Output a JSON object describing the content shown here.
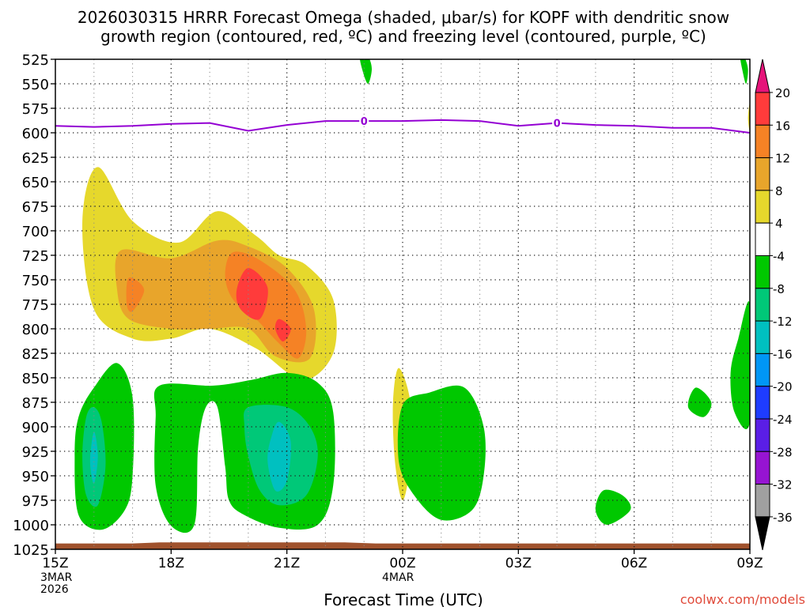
{
  "chart_data": {
    "type": "contour",
    "title_line1": "2026030315 HRRR Forecast Omega (shaded, μbar/s) for KOPF with dendritic snow",
    "title_line2": "growth region (contoured, red, ºC) and freezing level (contoured, purple, ºC)",
    "xlabel": "Forecast Time (UTC)",
    "watermark": "coolwx.com/models",
    "x_ticks": [
      {
        "h": 0,
        "label": "15Z",
        "sub": [
          "3MAR",
          "2026"
        ]
      },
      {
        "h": 3,
        "label": "18Z",
        "sub": []
      },
      {
        "h": 6,
        "label": "21Z",
        "sub": []
      },
      {
        "h": 9,
        "label": "00Z",
        "sub": [
          "4MAR"
        ]
      },
      {
        "h": 12,
        "label": "03Z",
        "sub": []
      },
      {
        "h": 15,
        "label": "06Z",
        "sub": []
      },
      {
        "h": 18,
        "label": "09Z",
        "sub": []
      }
    ],
    "xlim": [
      0,
      18
    ],
    "y_ticks": [
      525,
      550,
      575,
      600,
      625,
      650,
      675,
      700,
      725,
      750,
      775,
      800,
      825,
      850,
      875,
      900,
      925,
      950,
      975,
      1000,
      1025
    ],
    "ylim": [
      1025,
      525
    ],
    "freezing_level": {
      "label": "0",
      "label_hours": [
        8,
        13
      ],
      "points": [
        [
          0,
          593
        ],
        [
          1,
          594
        ],
        [
          2,
          593
        ],
        [
          3,
          591
        ],
        [
          4,
          590
        ],
        [
          5,
          598
        ],
        [
          6,
          592
        ],
        [
          7,
          588
        ],
        [
          8,
          588
        ],
        [
          9,
          588
        ],
        [
          10,
          587
        ],
        [
          11,
          588
        ],
        [
          12,
          593
        ],
        [
          13,
          590
        ],
        [
          14,
          592
        ],
        [
          15,
          593
        ],
        [
          16,
          595
        ],
        [
          17,
          595
        ],
        [
          18,
          600
        ]
      ]
    },
    "colorbar": {
      "labels": [
        "20",
        "16",
        "12",
        "8",
        "4",
        "-4",
        "-8",
        "-12",
        "-16",
        "-20",
        "-24",
        "-28",
        "-32",
        "-36"
      ],
      "colors": [
        "#ff3b3b",
        "#f58225",
        "#e8a52b",
        "#e6d82c",
        "#ffffff",
        "#00c800",
        "#00c878",
        "#00c0c0",
        "#0096f5",
        "#1e3cff",
        "#5a1ee6",
        "#9614d2",
        "#a0a0a0"
      ],
      "top_arrow_color": "#e6147a",
      "bottom_arrow_color": "#000000"
    },
    "omega_regions": [
      {
        "level": "4",
        "color": "#e6d82c",
        "points": [
          [
            1.1,
            635
          ],
          [
            2,
            690
          ],
          [
            3.2,
            712
          ],
          [
            4.2,
            680
          ],
          [
            5.2,
            705
          ],
          [
            5.8,
            725
          ],
          [
            6.5,
            735
          ],
          [
            7.2,
            770
          ],
          [
            7.2,
            825
          ],
          [
            6.4,
            852
          ],
          [
            5.2,
            820
          ],
          [
            4,
            800
          ],
          [
            3,
            810
          ],
          [
            2,
            810
          ],
          [
            1,
            780
          ],
          [
            0.7,
            690
          ]
        ]
      },
      {
        "level": "8",
        "color": "#e8a52b",
        "points": [
          [
            1.7,
            720
          ],
          [
            3,
            728
          ],
          [
            4.2,
            710
          ],
          [
            5,
            716
          ],
          [
            6,
            738
          ],
          [
            6.7,
            780
          ],
          [
            6.6,
            830
          ],
          [
            5.7,
            828
          ],
          [
            5,
            800
          ],
          [
            4,
            800
          ],
          [
            3,
            800
          ],
          [
            1.9,
            790
          ],
          [
            1.6,
            760
          ]
        ]
      },
      {
        "level": "12",
        "color": "#f58225",
        "points": [
          [
            1.9,
            748
          ],
          [
            2.3,
            760
          ],
          [
            2,
            782
          ],
          [
            1.85,
            775
          ]
        ]
      },
      {
        "level": "12",
        "color": "#f58225",
        "points": [
          [
            4.6,
            722
          ],
          [
            5.3,
            730
          ],
          [
            6.2,
            760
          ],
          [
            6.5,
            800
          ],
          [
            6.3,
            830
          ],
          [
            5.8,
            815
          ],
          [
            5.2,
            790
          ],
          [
            4.6,
            770
          ],
          [
            4.4,
            745
          ]
        ]
      },
      {
        "level": "16",
        "color": "#ff3b3b",
        "points": [
          [
            5,
            738
          ],
          [
            5.5,
            758
          ],
          [
            5.3,
            790
          ],
          [
            4.8,
            780
          ],
          [
            4.7,
            760
          ]
        ]
      },
      {
        "level": "16",
        "color": "#ff3b3b",
        "points": [
          [
            5.8,
            790
          ],
          [
            6.1,
            800
          ],
          [
            5.9,
            813
          ],
          [
            5.7,
            800
          ]
        ]
      },
      {
        "level": "4",
        "color": "#e6d82c",
        "points": [
          [
            8.9,
            840
          ],
          [
            9.2,
            875
          ],
          [
            9.2,
            935
          ],
          [
            9,
            975
          ],
          [
            8.8,
            935
          ],
          [
            8.75,
            875
          ]
        ]
      },
      {
        "level": "-4",
        "color": "#00c800",
        "points": [
          [
            8.1,
            522
          ],
          [
            8.2,
            535
          ],
          [
            8.1,
            550
          ],
          [
            7.95,
            535
          ],
          [
            7.9,
            522
          ]
        ]
      },
      {
        "level": "-4",
        "color": "#00c800",
        "points": [
          [
            17.85,
            522
          ],
          [
            17.95,
            535
          ],
          [
            17.9,
            550
          ],
          [
            17.8,
            535
          ],
          [
            17.75,
            522
          ]
        ]
      },
      {
        "level": "-4",
        "color": "#00c800",
        "points": [
          [
            1,
            860
          ],
          [
            1.6,
            835
          ],
          [
            2,
            870
          ],
          [
            2,
            950
          ],
          [
            1.8,
            985
          ],
          [
            1.2,
            1005
          ],
          [
            0.6,
            990
          ],
          [
            0.5,
            930
          ],
          [
            0.6,
            890
          ]
        ]
      },
      {
        "level": "-8",
        "color": "#00c878",
        "points": [
          [
            1,
            880
          ],
          [
            1.2,
            895
          ],
          [
            1.3,
            940
          ],
          [
            1.1,
            980
          ],
          [
            0.8,
            970
          ],
          [
            0.7,
            930
          ],
          [
            0.8,
            890
          ]
        ]
      },
      {
        "level": "-12",
        "color": "#00c0c0",
        "points": [
          [
            1,
            905
          ],
          [
            1.1,
            930
          ],
          [
            1,
            958
          ],
          [
            0.9,
            935
          ]
        ]
      },
      {
        "level": "-4",
        "color": "#00c800",
        "points": [
          [
            2.7,
            858
          ],
          [
            4.1,
            858
          ],
          [
            5.1,
            852
          ],
          [
            6,
            845
          ],
          [
            6.8,
            855
          ],
          [
            7.2,
            885
          ],
          [
            7.2,
            960
          ],
          [
            6.8,
            1000
          ],
          [
            5.8,
            1003
          ],
          [
            4.9,
            990
          ],
          [
            4.5,
            975
          ],
          [
            4.4,
            940
          ],
          [
            4.2,
            880
          ],
          [
            3.9,
            880
          ],
          [
            3.7,
            920
          ],
          [
            3.6,
            1000
          ],
          [
            3,
            1001
          ],
          [
            2.6,
            960
          ],
          [
            2.6,
            890
          ]
        ]
      },
      {
        "level": "-8",
        "color": "#00c878",
        "points": [
          [
            5,
            880
          ],
          [
            6,
            880
          ],
          [
            6.6,
            900
          ],
          [
            6.8,
            930
          ],
          [
            6.5,
            970
          ],
          [
            5.8,
            980
          ],
          [
            5.3,
            965
          ],
          [
            5,
            930
          ],
          [
            4.9,
            900
          ]
        ]
      },
      {
        "level": "-12",
        "color": "#00c0c0",
        "points": [
          [
            5.8,
            895
          ],
          [
            6.1,
            915
          ],
          [
            6,
            955
          ],
          [
            5.7,
            965
          ],
          [
            5.5,
            935
          ],
          [
            5.6,
            910
          ]
        ]
      },
      {
        "level": "-4",
        "color": "#00c800",
        "points": [
          [
            9,
            878
          ],
          [
            9.7,
            865
          ],
          [
            10.6,
            860
          ],
          [
            11.1,
            900
          ],
          [
            11.1,
            950
          ],
          [
            10.8,
            985
          ],
          [
            10,
            995
          ],
          [
            9.3,
            970
          ],
          [
            8.9,
            935
          ]
        ]
      },
      {
        "level": "-4",
        "color": "#00c800",
        "points": [
          [
            14.2,
            965
          ],
          [
            14.7,
            970
          ],
          [
            14.9,
            985
          ],
          [
            14.3,
            1000
          ],
          [
            14,
            985
          ]
        ]
      },
      {
        "level": "-4",
        "color": "#00c800",
        "points": [
          [
            16.6,
            860
          ],
          [
            17,
            875
          ],
          [
            16.8,
            890
          ],
          [
            16.4,
            880
          ]
        ]
      },
      {
        "level": "-4",
        "color": "#00c800",
        "points": [
          [
            18,
            775
          ],
          [
            18,
            895
          ],
          [
            17.6,
            885
          ],
          [
            17.5,
            845
          ],
          [
            17.7,
            810
          ]
        ]
      },
      {
        "level": "4",
        "color": "#e6d82c",
        "points": [
          [
            18,
            570
          ],
          [
            18,
            598
          ],
          [
            17.95,
            585
          ]
        ]
      }
    ],
    "ground_profile": [
      [
        0,
        1019
      ],
      [
        2,
        1019
      ],
      [
        2.7,
        1018
      ],
      [
        7.5,
        1018
      ],
      [
        8.3,
        1019
      ],
      [
        18,
        1019
      ]
    ]
  }
}
